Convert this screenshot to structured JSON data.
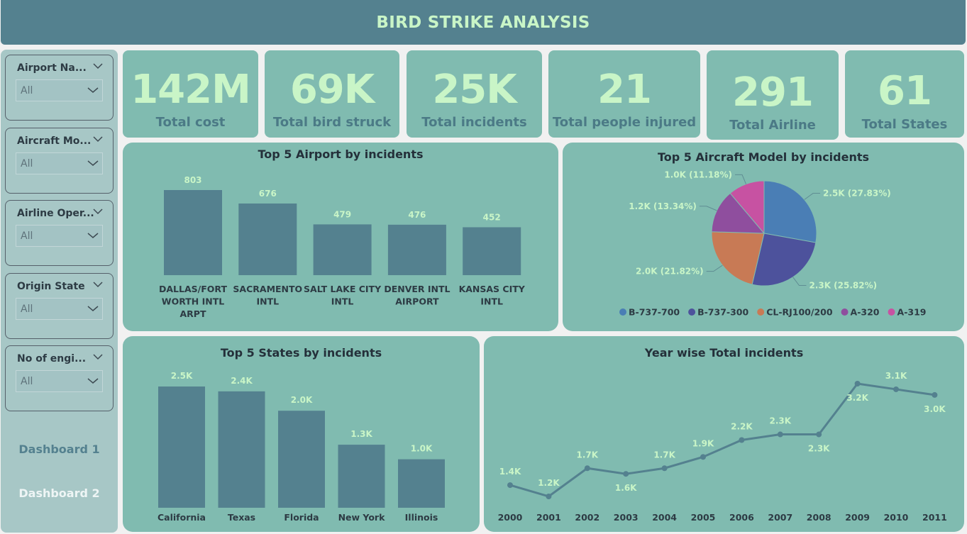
{
  "header": {
    "title": "BIRD STRIKE ANALYSIS"
  },
  "sidebar": {
    "slicers": [
      {
        "title": "Airport Na...",
        "value": "All"
      },
      {
        "title": "Aircraft Mo...",
        "value": "All"
      },
      {
        "title": "Airline Oper...",
        "value": "All"
      },
      {
        "title": "Origin State",
        "value": "All"
      },
      {
        "title": "No of engi...",
        "value": "All"
      }
    ],
    "nav": [
      {
        "label": "Dashboard 1"
      },
      {
        "label": "Dashboard 2"
      }
    ]
  },
  "kpis": [
    {
      "value": "142M",
      "label": "Total  cost"
    },
    {
      "value": "69K",
      "label": "Total  bird  struck"
    },
    {
      "value": "25K",
      "label": "Total  incidents"
    },
    {
      "value": "21",
      "label": "Total people injured"
    },
    {
      "value": "291",
      "label": "Total Airline"
    },
    {
      "value": "61",
      "label": "Total States"
    }
  ],
  "colors": {
    "bar": "#54818f",
    "line": "#54818f",
    "label": "#c9f5c7",
    "card": "#80bbb0",
    "pie": [
      "#4a7eb5",
      "#4d529c",
      "#c87a55",
      "#8f4e9e",
      "#c752a2"
    ]
  },
  "chart_data": [
    {
      "type": "bar",
      "title": "Top 5 Airport by incidents",
      "categories": [
        "DALLAS/FORT WORTH INTL ARPT",
        "SACRAMENTO INTL",
        "SALT LAKE CITY INTL",
        "DENVER INTL AIRPORT",
        "KANSAS CITY INTL"
      ],
      "category_lines": [
        [
          "DALLAS/FORT",
          "WORTH INTL",
          "ARPT"
        ],
        [
          "SACRAMENTO",
          "INTL"
        ],
        [
          "SALT LAKE CITY",
          "INTL"
        ],
        [
          "DENVER INTL",
          "AIRPORT"
        ],
        [
          "KANSAS CITY",
          "INTL"
        ]
      ],
      "values": [
        803,
        676,
        479,
        476,
        452
      ],
      "value_labels": [
        "803",
        "676",
        "479",
        "476",
        "452"
      ],
      "ylim": [
        0,
        803
      ]
    },
    {
      "type": "pie",
      "title": "Top 5 Aircraft Model by incidents",
      "categories": [
        "B-737-700",
        "B-737-300",
        "CL-RJ100/200",
        "A-320",
        "A-319"
      ],
      "values": [
        2500,
        2300,
        2000,
        1200,
        1000
      ],
      "percents": [
        27.83,
        25.82,
        21.82,
        13.34,
        11.18
      ],
      "value_labels": [
        "2.5K (27.83%)",
        "2.3K (25.82%)",
        "2.0K (21.82%)",
        "1.2K (13.34%)",
        "1.0K (11.18%)"
      ],
      "legend": "bottom"
    },
    {
      "type": "bar",
      "title": "Top 5 States by incidents",
      "categories": [
        "California",
        "Texas",
        "Florida",
        "New York",
        "Illinois"
      ],
      "values": [
        2500,
        2400,
        2000,
        1300,
        1000
      ],
      "value_labels": [
        "2.5K",
        "2.4K",
        "2.0K",
        "1.3K",
        "1.0K"
      ],
      "ylim": [
        0,
        2500
      ]
    },
    {
      "type": "line",
      "title": "Year wise Total incidents",
      "x": [
        "2000",
        "2001",
        "2002",
        "2003",
        "2004",
        "2005",
        "2006",
        "2007",
        "2008",
        "2009",
        "2010",
        "2011"
      ],
      "values": [
        1400,
        1200,
        1700,
        1600,
        1700,
        1900,
        2200,
        2300,
        2300,
        3200,
        3100,
        3000
      ],
      "value_labels": [
        "1.4K",
        "1.2K",
        "1.7K",
        "1.6K",
        "1.7K",
        "1.9K",
        "2.2K",
        "2.3K",
        "2.3K",
        "3.2K",
        "3.1K",
        "3.0K"
      ],
      "ylim": [
        1200,
        3200
      ]
    }
  ]
}
